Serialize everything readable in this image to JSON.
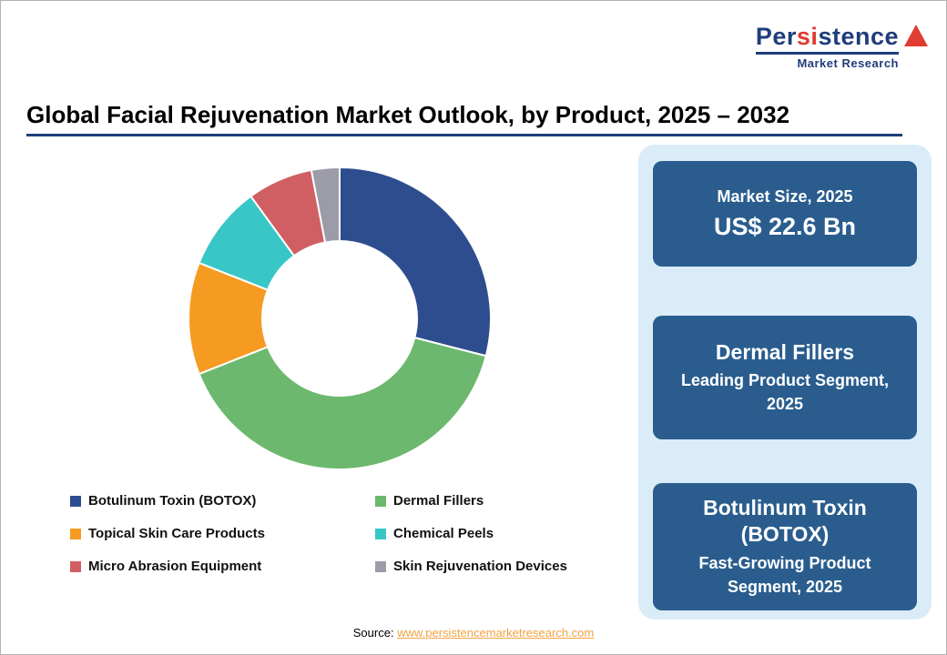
{
  "logo": {
    "part1": "Per",
    "part2": "si",
    "part3": "stence",
    "line2": "Market Research"
  },
  "title": "Global Facial Rejuvenation Market Outlook, by Product, 2025 – 2032",
  "chart_data": {
    "type": "pie",
    "subtype": "donut",
    "title": "Global Facial Rejuvenation Market Outlook, by Product, 2025 – 2032",
    "start_angle_deg": 0,
    "direction": "clockwise",
    "legend_position": "bottom",
    "segments": [
      {
        "label": "Botulinum Toxin (BOTOX)",
        "value": 29,
        "color": "#2e4d8e"
      },
      {
        "label": "Dermal Fillers",
        "value": 40,
        "color": "#6cb86e"
      },
      {
        "label": "Topical Skin Care Products",
        "value": 12,
        "color": "#f59b22"
      },
      {
        "label": "Chemical Peels",
        "value": 9,
        "color": "#38c6c6"
      },
      {
        "label": "Micro Abrasion Equipment",
        "value": 7,
        "color": "#d05f63"
      },
      {
        "label": "Skin Rejuvenation Devices",
        "value": 3,
        "color": "#9c9ca8"
      }
    ]
  },
  "info_panel": {
    "cards": [
      {
        "line1": "Market Size, 2025",
        "line2": "US$ 22.6 Bn"
      },
      {
        "line1": "Dermal Fillers",
        "line2": "Leading Product Segment, 2025"
      },
      {
        "line1": "Botulinum Toxin (BOTOX)",
        "line2": "Fast-Growing Product Segment, 2025"
      }
    ]
  },
  "source": {
    "label": "Source:",
    "link": "www.persistencemarketresearch.com"
  },
  "colors": {
    "panel_bg": "#daecf8",
    "card_bg": "#2a5d8e",
    "title_rule": "#1c3e7a",
    "link": "#f2a341",
    "logo_navy": "#1f3d7c",
    "logo_red": "#e03c31"
  }
}
